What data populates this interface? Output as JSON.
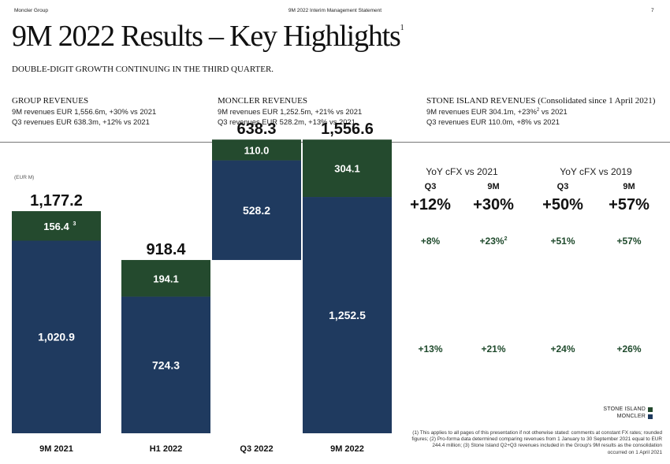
{
  "header": {
    "left": "Moncler Group",
    "center": "9M 2022 Interim Management Statement",
    "page_number": "7"
  },
  "title": {
    "text": "9M 2022 Results – Key Highlights",
    "footnote_mark": "1"
  },
  "subtitle": "DOUBLE-DIGIT GROWTH CONTINUING IN THE THIRD QUARTER.",
  "highlights": [
    {
      "heading": "GROUP REVENUES",
      "heading_note": "",
      "line1": "9M revenues EUR 1,556.6m, +30% vs 2021",
      "line1_sup": "",
      "line1_tail": "",
      "line2": "Q3 revenues EUR 638.3m, +12% vs 2021"
    },
    {
      "heading": "MONCLER REVENUES",
      "heading_note": "",
      "line1": "9M revenues EUR 1,252.5m, +21% vs 2021",
      "line1_sup": "",
      "line1_tail": "",
      "line2": "Q3 revenues EUR 528.2m, +13% vs 2021"
    },
    {
      "heading": "STONE ISLAND REVENUES",
      "heading_note": "(Consolidated since 1 April 2021)",
      "line1": "9M revenues EUR 304.1m, +23%",
      "line1_sup": "2",
      "line1_tail": " vs 2021",
      "line2": "Q3 revenues EUR 110.0m, +8% vs 2021"
    }
  ],
  "colors": {
    "moncler": "#1f3a5f",
    "stone_island": "#244a2e",
    "positive_text": "#1f4a2c"
  },
  "chart_data": {
    "type": "bar",
    "unit_label": "(EUR M)",
    "categories": [
      "9M 2021",
      "H1 2022",
      "Q3 2022",
      "9M 2022"
    ],
    "totals": [
      "1,177.2",
      "918.4",
      "638.3",
      "1,556.6"
    ],
    "series": [
      {
        "name": "MONCLER",
        "values": [
          1020.9,
          724.3,
          528.2,
          1252.5
        ],
        "labels": [
          "1,020.9",
          "724.3",
          "528.2",
          "1,252.5"
        ],
        "label_sups": [
          "",
          "",
          "",
          ""
        ]
      },
      {
        "name": "STONE ISLAND",
        "values": [
          156.4,
          194.1,
          110.0,
          304.1
        ],
        "labels": [
          "156.4",
          "194.1",
          "110.0",
          "304.1"
        ],
        "label_sups": [
          "3",
          "",
          "",
          ""
        ]
      }
    ],
    "waterfall_bases": [
      0,
      0,
      918.4,
      0
    ],
    "ylim": [
      0,
      1600
    ]
  },
  "growth_table": {
    "groups": [
      {
        "label": "YoY cFX vs 2021",
        "cols": [
          "Q3",
          "9M"
        ]
      },
      {
        "label": "YoY cFX vs 2019",
        "cols": [
          "Q3",
          "9M"
        ]
      }
    ],
    "group_total": [
      "+12%",
      "+30%",
      "+50%",
      "+57%"
    ],
    "stone_island": [
      "+8%",
      "+23%",
      "+51%",
      "+57%"
    ],
    "stone_island_sups": [
      "",
      "2",
      "",
      ""
    ],
    "moncler": [
      "+13%",
      "+21%",
      "+24%",
      "+26%"
    ]
  },
  "legend": {
    "stone_island": "STONE ISLAND",
    "moncler": "MONCLER"
  },
  "footnote": "(1) This applies to all pages of this presentation if not otherwise stated: comments at constant FX rates; rounded figures; (2) Pro-forma data determined comparing revenues from 1 January to 30 September 2021 equal to EUR 244.4 million; (3) Stone Island Q2+Q3 revenues included in the Group's 9M results as the consolidation occurred on 1 April 2021"
}
